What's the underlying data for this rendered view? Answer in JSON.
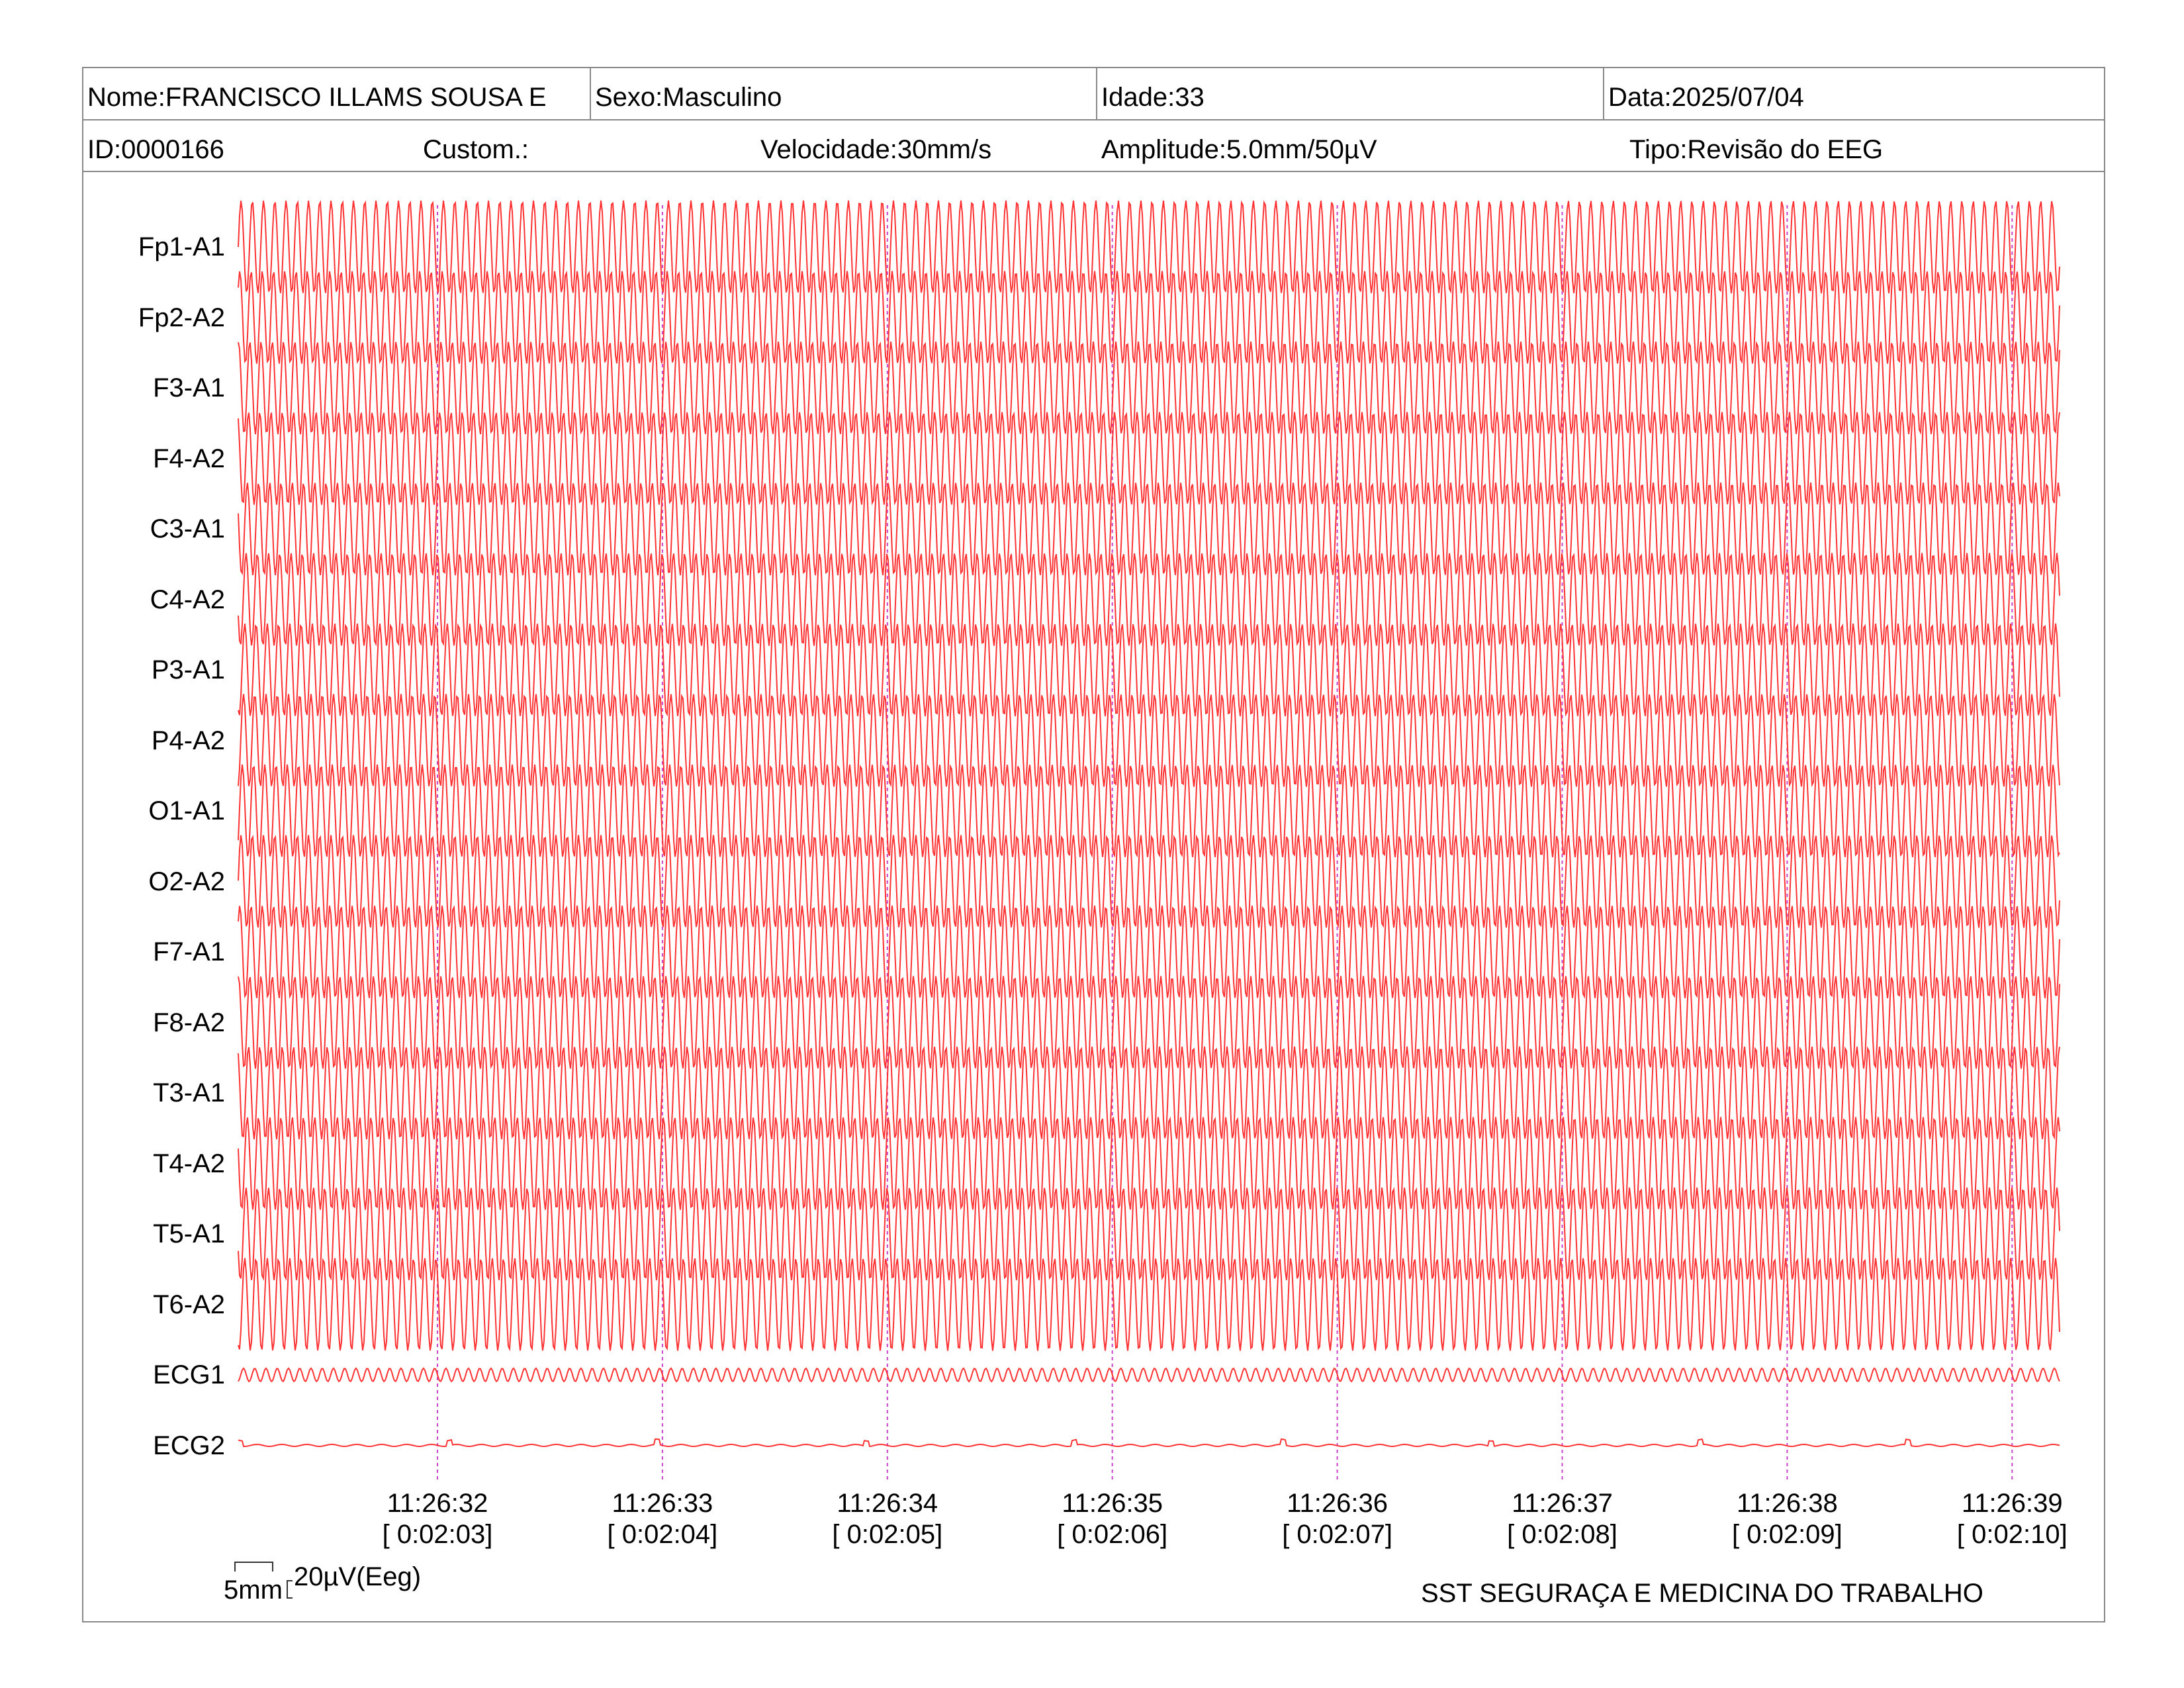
{
  "header": {
    "nome": "Nome:FRANCISCO ILLAMS SOUSA E",
    "sexo": "Sexo:Masculino",
    "idade": "Idade:33",
    "data": "Data:2025/07/04",
    "id": "ID:0000166",
    "custom": "Custom.:",
    "velocidade": "Velocidade:30mm/s",
    "amplitude": "Amplitude:5.0mm/50µV",
    "tipo": "Tipo:Revisão do EEG"
  },
  "scale": {
    "time_label": "5mm",
    "amp_label": "20µV(Eeg)"
  },
  "footer": {
    "company": "SST SEGURAÇA E MEDICINA DO TRABALHO"
  },
  "colors": {
    "trace": "#ff3333",
    "marker": "#cc44cc",
    "border": "#888888"
  },
  "chart_data": {
    "type": "line",
    "title": "",
    "channels": [
      "Fp1-A1",
      "Fp2-A2",
      "F3-A1",
      "F4-A2",
      "C3-A1",
      "C4-A2",
      "P3-A1",
      "P4-A2",
      "O1-A1",
      "O2-A2",
      "F7-A1",
      "F8-A2",
      "T3-A1",
      "T4-A2",
      "T5-A1",
      "T6-A2",
      "ECG1",
      "ECG2"
    ],
    "time_ticks": [
      {
        "clock": "11:26:32",
        "elapsed": "[ 0:02:03]"
      },
      {
        "clock": "11:26:33",
        "elapsed": "[ 0:02:04]"
      },
      {
        "clock": "11:26:34",
        "elapsed": "[ 0:02:05]"
      },
      {
        "clock": "11:26:35",
        "elapsed": "[ 0:02:06]"
      },
      {
        "clock": "11:26:36",
        "elapsed": "[ 0:02:07]"
      },
      {
        "clock": "11:26:37",
        "elapsed": "[ 0:02:08]"
      },
      {
        "clock": "11:26:38",
        "elapsed": "[ 0:02:09]"
      },
      {
        "clock": "11:26:39",
        "elapsed": "[ 0:02:10]"
      }
    ],
    "signal": {
      "eeg_frequency_hz": 20,
      "seconds_shown": 8.6,
      "ecg1": "low-amplitude oscillation",
      "ecg2": "near-flat with small spikes"
    }
  }
}
